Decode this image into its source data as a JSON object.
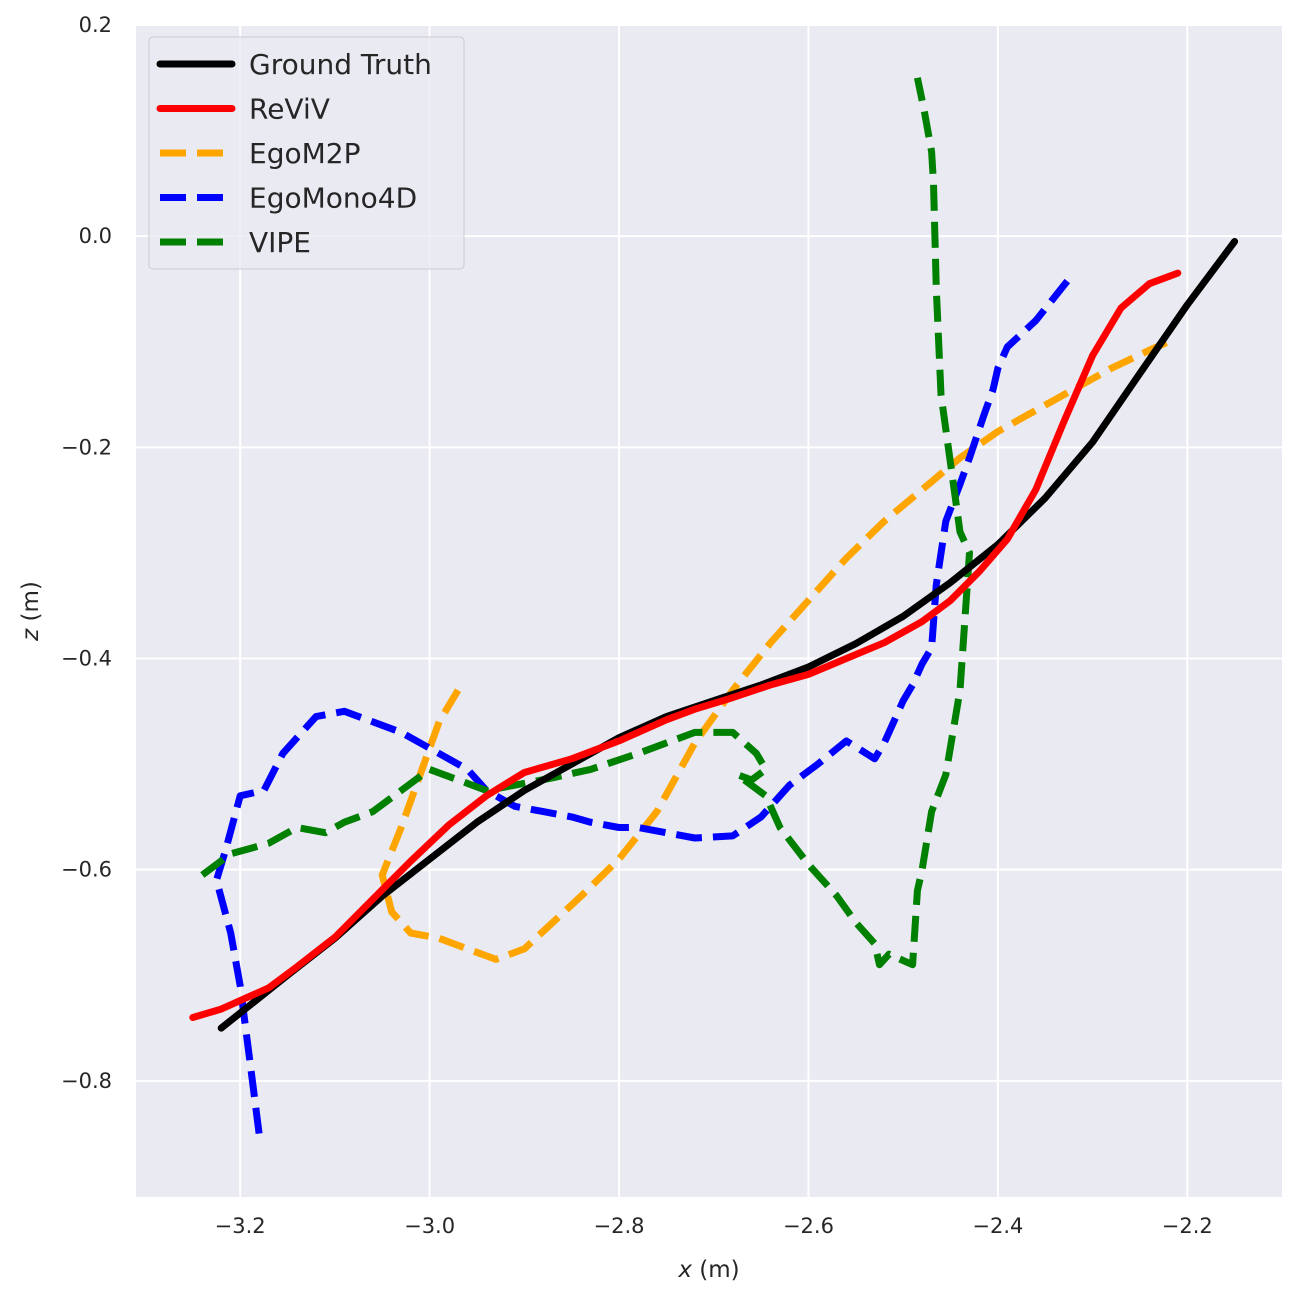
{
  "chart_data": {
    "type": "line",
    "title": "",
    "xlabel_var": "x",
    "xlabel_unit": " (m)",
    "ylabel_var": "z",
    "ylabel_unit": " (m)",
    "xlim": [
      -3.31,
      -2.1
    ],
    "ylim": [
      -0.91,
      0.2
    ],
    "xticks": [
      -3.2,
      -3.0,
      -2.8,
      -2.6,
      -2.4,
      -2.2
    ],
    "xtick_labels": [
      "−3.2",
      "−3.0",
      "−2.8",
      "−2.6",
      "−2.4",
      "−2.2"
    ],
    "yticks": [
      0.2,
      0.0,
      -0.2,
      -0.4,
      -0.6,
      -0.8
    ],
    "ytick_labels": [
      "0.2",
      "0.0",
      "−0.2",
      "−0.4",
      "−0.6",
      "−0.8"
    ],
    "grid": true,
    "background": "#eaeaf2",
    "legend_position": "top-left",
    "series": [
      {
        "name": "Ground Truth",
        "color": "#000000",
        "dashed": false,
        "x": [
          -3.22,
          -3.15,
          -3.1,
          -3.05,
          -3.0,
          -2.95,
          -2.9,
          -2.85,
          -2.8,
          -2.75,
          -2.7,
          -2.65,
          -2.6,
          -2.55,
          -2.5,
          -2.45,
          -2.4,
          -2.35,
          -2.3,
          -2.25,
          -2.2,
          -2.15
        ],
        "y": [
          -0.75,
          -0.7,
          -0.665,
          -0.625,
          -0.59,
          -0.555,
          -0.525,
          -0.5,
          -0.475,
          -0.455,
          -0.44,
          -0.425,
          -0.408,
          -0.386,
          -0.36,
          -0.328,
          -0.292,
          -0.248,
          -0.195,
          -0.13,
          -0.065,
          -0.005
        ]
      },
      {
        "name": "ReViV",
        "color": "#ff0000",
        "dashed": false,
        "x": [
          -3.25,
          -3.22,
          -3.2,
          -3.17,
          -3.14,
          -3.1,
          -3.06,
          -3.02,
          -2.98,
          -2.94,
          -2.9,
          -2.85,
          -2.8,
          -2.75,
          -2.72,
          -2.68,
          -2.64,
          -2.6,
          -2.56,
          -2.52,
          -2.48,
          -2.45,
          -2.42,
          -2.39,
          -2.36,
          -2.33,
          -2.3,
          -2.27,
          -2.24,
          -2.21
        ],
        "y": [
          -0.74,
          -0.732,
          -0.724,
          -0.712,
          -0.692,
          -0.664,
          -0.628,
          -0.592,
          -0.558,
          -0.53,
          -0.508,
          -0.495,
          -0.478,
          -0.458,
          -0.448,
          -0.437,
          -0.425,
          -0.415,
          -0.4,
          -0.385,
          -0.365,
          -0.345,
          -0.318,
          -0.287,
          -0.24,
          -0.175,
          -0.113,
          -0.068,
          -0.045,
          -0.035
        ]
      },
      {
        "name": "EgoM2P",
        "color": "#ffa500",
        "dashed": true,
        "x": [
          -2.97,
          -2.99,
          -3.01,
          -3.03,
          -3.05,
          -3.04,
          -3.02,
          -2.99,
          -2.96,
          -2.93,
          -2.9,
          -2.87,
          -2.84,
          -2.8,
          -2.76,
          -2.72,
          -2.68,
          -2.64,
          -2.6,
          -2.56,
          -2.52,
          -2.48,
          -2.44,
          -2.4,
          -2.36,
          -2.32,
          -2.28,
          -2.24,
          -2.22
        ],
        "y": [
          -0.43,
          -0.46,
          -0.51,
          -0.56,
          -0.605,
          -0.64,
          -0.66,
          -0.665,
          -0.675,
          -0.685,
          -0.675,
          -0.65,
          -0.625,
          -0.59,
          -0.545,
          -0.48,
          -0.43,
          -0.385,
          -0.345,
          -0.305,
          -0.27,
          -0.24,
          -0.21,
          -0.185,
          -0.165,
          -0.145,
          -0.125,
          -0.108,
          -0.1
        ]
      },
      {
        "name": "EgoMono4D",
        "color": "#0000ff",
        "dashed": true,
        "x": [
          -3.18,
          -3.19,
          -3.2,
          -3.21,
          -3.225,
          -3.215,
          -3.2,
          -3.175,
          -3.155,
          -3.12,
          -3.09,
          -3.03,
          -2.99,
          -2.96,
          -2.94,
          -2.91,
          -2.88,
          -2.85,
          -2.83,
          -2.8,
          -2.78,
          -2.75,
          -2.72,
          -2.68,
          -2.65,
          -2.62,
          -2.59,
          -2.56,
          -2.53,
          -2.52,
          -2.5,
          -2.49,
          -2.48,
          -2.47,
          -2.465,
          -2.455,
          -2.44,
          -2.43,
          -2.415,
          -2.405,
          -2.4,
          -2.39,
          -2.36,
          -2.32
        ],
        "y": [
          -0.85,
          -0.78,
          -0.71,
          -0.66,
          -0.61,
          -0.58,
          -0.53,
          -0.525,
          -0.49,
          -0.455,
          -0.45,
          -0.47,
          -0.49,
          -0.505,
          -0.525,
          -0.54,
          -0.545,
          -0.55,
          -0.555,
          -0.56,
          -0.56,
          -0.565,
          -0.57,
          -0.568,
          -0.55,
          -0.52,
          -0.5,
          -0.478,
          -0.495,
          -0.48,
          -0.44,
          -0.425,
          -0.405,
          -0.39,
          -0.33,
          -0.27,
          -0.235,
          -0.21,
          -0.17,
          -0.145,
          -0.125,
          -0.105,
          -0.08,
          -0.035
        ]
      },
      {
        "name": "VIPE",
        "color": "#008000",
        "dashed": true,
        "x": [
          -3.24,
          -3.21,
          -3.19,
          -3.17,
          -3.14,
          -3.11,
          -3.09,
          -3.06,
          -3.03,
          -3.0,
          -2.97,
          -2.94,
          -2.91,
          -2.87,
          -2.83,
          -2.78,
          -2.72,
          -2.68,
          -2.655,
          -2.645,
          -2.66,
          -2.675,
          -2.645,
          -2.63,
          -2.6,
          -2.57,
          -2.55,
          -2.53,
          -2.525,
          -2.515,
          -2.49,
          -2.485,
          -2.48,
          -2.47,
          -2.455,
          -2.44,
          -2.43,
          -2.44,
          -2.46,
          -2.465,
          -2.468,
          -2.47,
          -2.478,
          -2.485
        ],
        "y": [
          -0.605,
          -0.585,
          -0.58,
          -0.575,
          -0.56,
          -0.565,
          -0.555,
          -0.545,
          -0.525,
          -0.505,
          -0.515,
          -0.525,
          -0.52,
          -0.513,
          -0.505,
          -0.49,
          -0.47,
          -0.47,
          -0.49,
          -0.505,
          -0.515,
          -0.51,
          -0.53,
          -0.56,
          -0.595,
          -0.625,
          -0.65,
          -0.67,
          -0.69,
          -0.68,
          -0.69,
          -0.62,
          -0.6,
          -0.545,
          -0.51,
          -0.43,
          -0.3,
          -0.28,
          -0.15,
          -0.05,
          0.05,
          0.08,
          0.12,
          0.15
        ]
      }
    ]
  }
}
